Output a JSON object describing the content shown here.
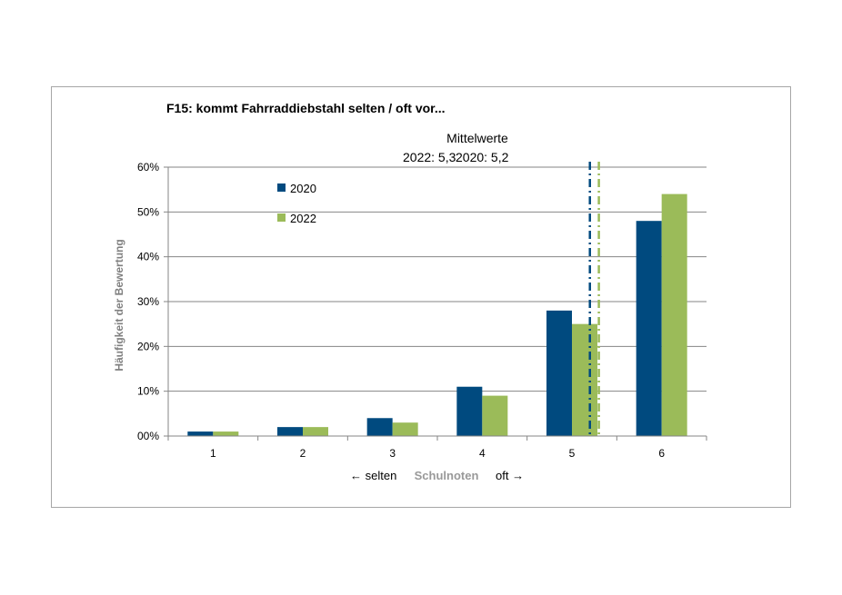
{
  "chart_data": {
    "type": "bar",
    "title": "F15: kommt Fahrraddiebstahl selten / oft vor...",
    "subtitle": "Mittelwerte",
    "means": [
      {
        "label": "2022: 5,3",
        "value": 5.3,
        "color": "#9bbb59"
      },
      {
        "label": "2020: 5,2",
        "value": 5.2,
        "color": "#004a7f"
      }
    ],
    "categories": [
      "1",
      "2",
      "3",
      "4",
      "5",
      "6"
    ],
    "series": [
      {
        "name": "2020",
        "color": "#004a7f",
        "values": [
          1,
          2,
          4,
          11,
          28,
          48
        ]
      },
      {
        "name": "2022",
        "color": "#9bbb59",
        "values": [
          1,
          2,
          3,
          9,
          25,
          54
        ]
      }
    ],
    "ylabel": "Häufigkeit der Bewertung",
    "ylim": [
      0,
      60
    ],
    "yticks": [
      "00%",
      "10%",
      "20%",
      "30%",
      "40%",
      "50%",
      "60%"
    ],
    "xlabel": {
      "left": "← selten",
      "middle": "Schulnoten",
      "right": "oft →"
    },
    "grid": true,
    "legend_position": "top-left"
  }
}
